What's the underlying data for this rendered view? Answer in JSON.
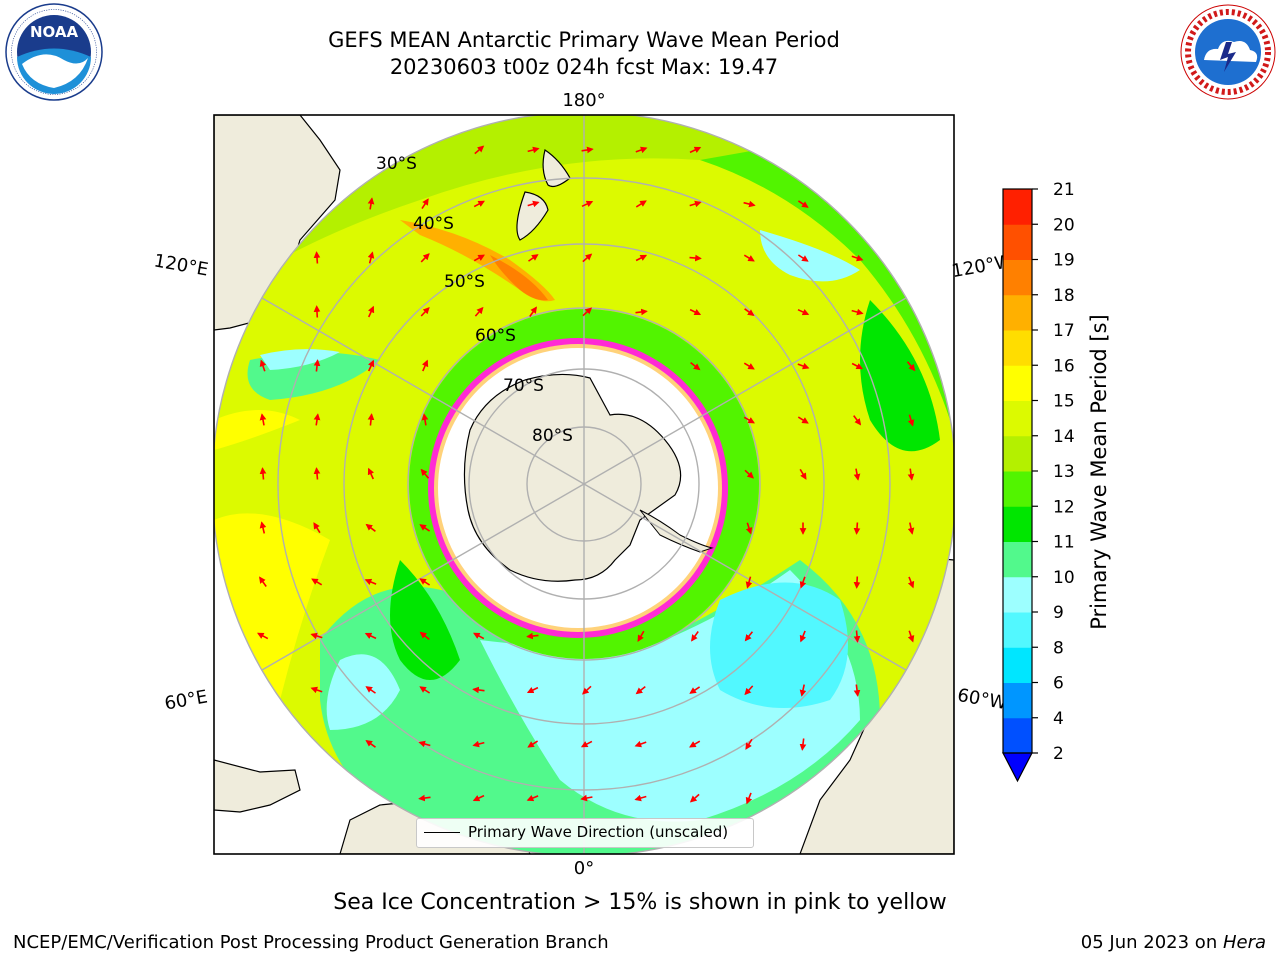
{
  "title": {
    "line1": "GEFS MEAN Antarctic Primary Wave Mean Period",
    "line2": "20230603 t00z 024h fcst   Max: 19.47"
  },
  "logos": {
    "left": {
      "icon": "noaa-logo",
      "text": "NOAA",
      "ring_text": "NATIONAL OCEANIC AND ATMOSPHERIC ADMINISTRATION · U.S. DEPARTMENT OF COMMERCE"
    },
    "right": {
      "icon": "nws-logo",
      "ring_text": "NATIONAL WEATHER SERVICE"
    }
  },
  "map": {
    "projection": "south-polar-stereographic",
    "lat_labels": [
      "30°S",
      "40°S",
      "50°S",
      "60°S",
      "70°S",
      "80°S"
    ],
    "lon_labels": {
      "top": "180°",
      "bottom": "0°",
      "left_upper": "120°E",
      "left_lower": "60°E",
      "right_upper": "120°W",
      "right_lower": "60°W"
    },
    "land_color": "#efecdc",
    "arrow_color": "#ff0000",
    "sea_ice_colors": [
      "#ff2ad4",
      "#ff8fcf",
      "#ffd27a",
      "#ffff66"
    ]
  },
  "colorbar": {
    "label": "Primary Wave Mean Period [s]",
    "ticks": [
      "2",
      "4",
      "6",
      "8",
      "9",
      "10",
      "11",
      "12",
      "13",
      "14",
      "15",
      "16",
      "17",
      "18",
      "19",
      "20",
      "21"
    ],
    "colors": [
      "#0050ff",
      "#0096ff",
      "#00e6ff",
      "#52f8ff",
      "#9dffff",
      "#52f98c",
      "#00e600",
      "#52f400",
      "#b4f000",
      "#dcfa00",
      "#ffff00",
      "#ffdd00",
      "#ffb000",
      "#ff8000",
      "#ff5000",
      "#ff2000"
    ],
    "under_color": "#0000ff"
  },
  "legend": {
    "label": "Primary Wave Direction (unscaled)"
  },
  "note": "Sea Ice Concentration > 15% is shown in pink to yellow",
  "footer": {
    "left": "NCEP/EMC/Verification Post Processing Product Generation Branch",
    "right_prefix": "05 Jun 2023 on ",
    "right_host": "Hera"
  }
}
